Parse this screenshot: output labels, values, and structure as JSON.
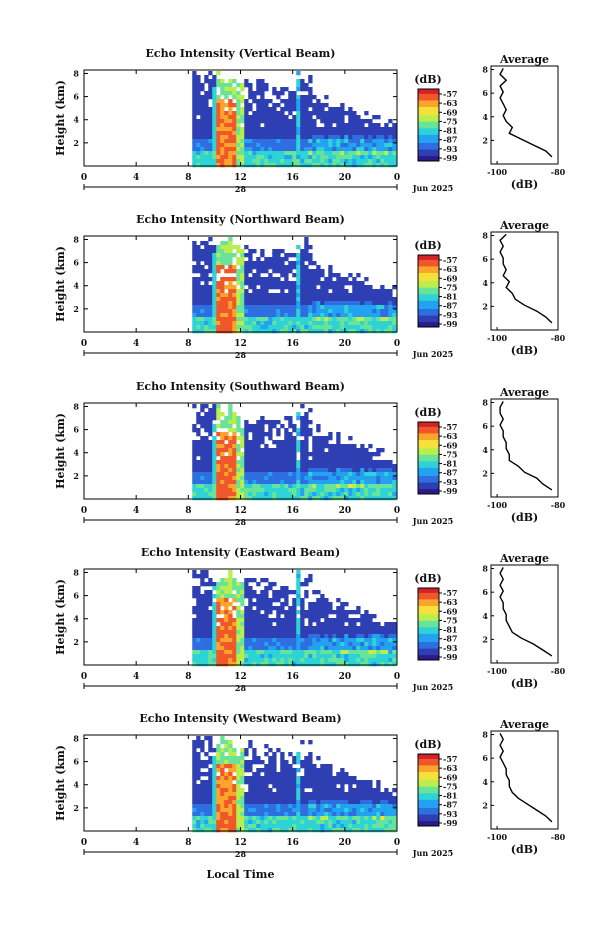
{
  "chart_data": {
    "type": "heatmap",
    "xlabel": "Local Time",
    "date_label": "28",
    "month_label": "Jun 2025",
    "x_ticks": [
      "0",
      "4",
      "8",
      "12",
      "16",
      "20",
      "0"
    ],
    "y_ticks": [
      "8",
      "6",
      "4",
      "2"
    ],
    "ylabel": "Height (km)",
    "colorbar_unit": "(dB)",
    "colorbar_ticks": [
      "-57",
      "-63",
      "-69",
      "-75",
      "-81",
      "-87",
      "-93",
      "-99"
    ],
    "colors": [
      "#2b1a8a",
      "#2e3fb3",
      "#2f6ee0",
      "#22a2f0",
      "#2ed3d6",
      "#69e39a",
      "#b9ee4e",
      "#f4e23a",
      "#fba52c",
      "#f0572a",
      "#d2232a"
    ],
    "avg_title": "Average",
    "avg_xlabel": "(dB)",
    "avg_x_ticks": [
      "-100",
      "-80"
    ],
    "avg_y_ticks": [
      "8",
      "6",
      "4",
      "2"
    ],
    "panels": [
      {
        "title": "Echo Intensity (Vertical Beam)",
        "average_profile": [
          [
            -98,
            8.1
          ],
          [
            -99,
            7.6
          ],
          [
            -97,
            7.1
          ],
          [
            -99,
            6.6
          ],
          [
            -98,
            6.1
          ],
          [
            -99,
            5.6
          ],
          [
            -98,
            5.1
          ],
          [
            -97,
            4.6
          ],
          [
            -98,
            4.1
          ],
          [
            -97,
            3.6
          ],
          [
            -95,
            3.1
          ],
          [
            -96,
            2.6
          ],
          [
            -92,
            2.1
          ],
          [
            -88,
            1.6
          ],
          [
            -84,
            1.1
          ],
          [
            -82,
            0.6
          ]
        ]
      },
      {
        "title": "Echo Intensity (Northward Beam)",
        "average_profile": [
          [
            -97,
            8.1
          ],
          [
            -99,
            7.6
          ],
          [
            -98,
            7.1
          ],
          [
            -99,
            6.6
          ],
          [
            -98,
            6.1
          ],
          [
            -98,
            5.6
          ],
          [
            -97,
            5.1
          ],
          [
            -98,
            4.6
          ],
          [
            -96,
            4.1
          ],
          [
            -97,
            3.6
          ],
          [
            -95,
            3.1
          ],
          [
            -94,
            2.6
          ],
          [
            -91,
            2.1
          ],
          [
            -87,
            1.6
          ],
          [
            -84,
            1.1
          ],
          [
            -82,
            0.6
          ]
        ]
      },
      {
        "title": "Echo Intensity (Southward Beam)",
        "average_profile": [
          [
            -98,
            8.1
          ],
          [
            -99,
            7.6
          ],
          [
            -99,
            7.1
          ],
          [
            -98,
            6.6
          ],
          [
            -99,
            6.1
          ],
          [
            -98,
            5.6
          ],
          [
            -98,
            5.1
          ],
          [
            -97,
            4.6
          ],
          [
            -97,
            4.1
          ],
          [
            -96,
            3.6
          ],
          [
            -96,
            3.1
          ],
          [
            -93,
            2.6
          ],
          [
            -91,
            2.1
          ],
          [
            -87,
            1.6
          ],
          [
            -85,
            1.1
          ],
          [
            -82,
            0.6
          ]
        ]
      },
      {
        "title": "Echo Intensity (Eastward Beam)",
        "average_profile": [
          [
            -98,
            8.1
          ],
          [
            -99,
            7.6
          ],
          [
            -98,
            7.1
          ],
          [
            -99,
            6.6
          ],
          [
            -98,
            6.1
          ],
          [
            -99,
            5.6
          ],
          [
            -98,
            5.1
          ],
          [
            -98,
            4.6
          ],
          [
            -97,
            4.1
          ],
          [
            -97,
            3.6
          ],
          [
            -96,
            3.1
          ],
          [
            -95,
            2.6
          ],
          [
            -92,
            2.1
          ],
          [
            -88,
            1.6
          ],
          [
            -85,
            1.1
          ],
          [
            -82,
            0.6
          ]
        ]
      },
      {
        "title": "Echo Intensity (Westward Beam)",
        "average_profile": [
          [
            -99,
            8.1
          ],
          [
            -98,
            7.6
          ],
          [
            -99,
            7.1
          ],
          [
            -98,
            6.6
          ],
          [
            -99,
            6.1
          ],
          [
            -98,
            5.6
          ],
          [
            -97,
            5.1
          ],
          [
            -97,
            4.6
          ],
          [
            -96,
            4.1
          ],
          [
            -96,
            3.6
          ],
          [
            -95,
            3.1
          ],
          [
            -93,
            2.6
          ],
          [
            -90,
            2.1
          ],
          [
            -87,
            1.6
          ],
          [
            -84,
            1.1
          ],
          [
            -82,
            0.6
          ]
        ]
      }
    ]
  }
}
